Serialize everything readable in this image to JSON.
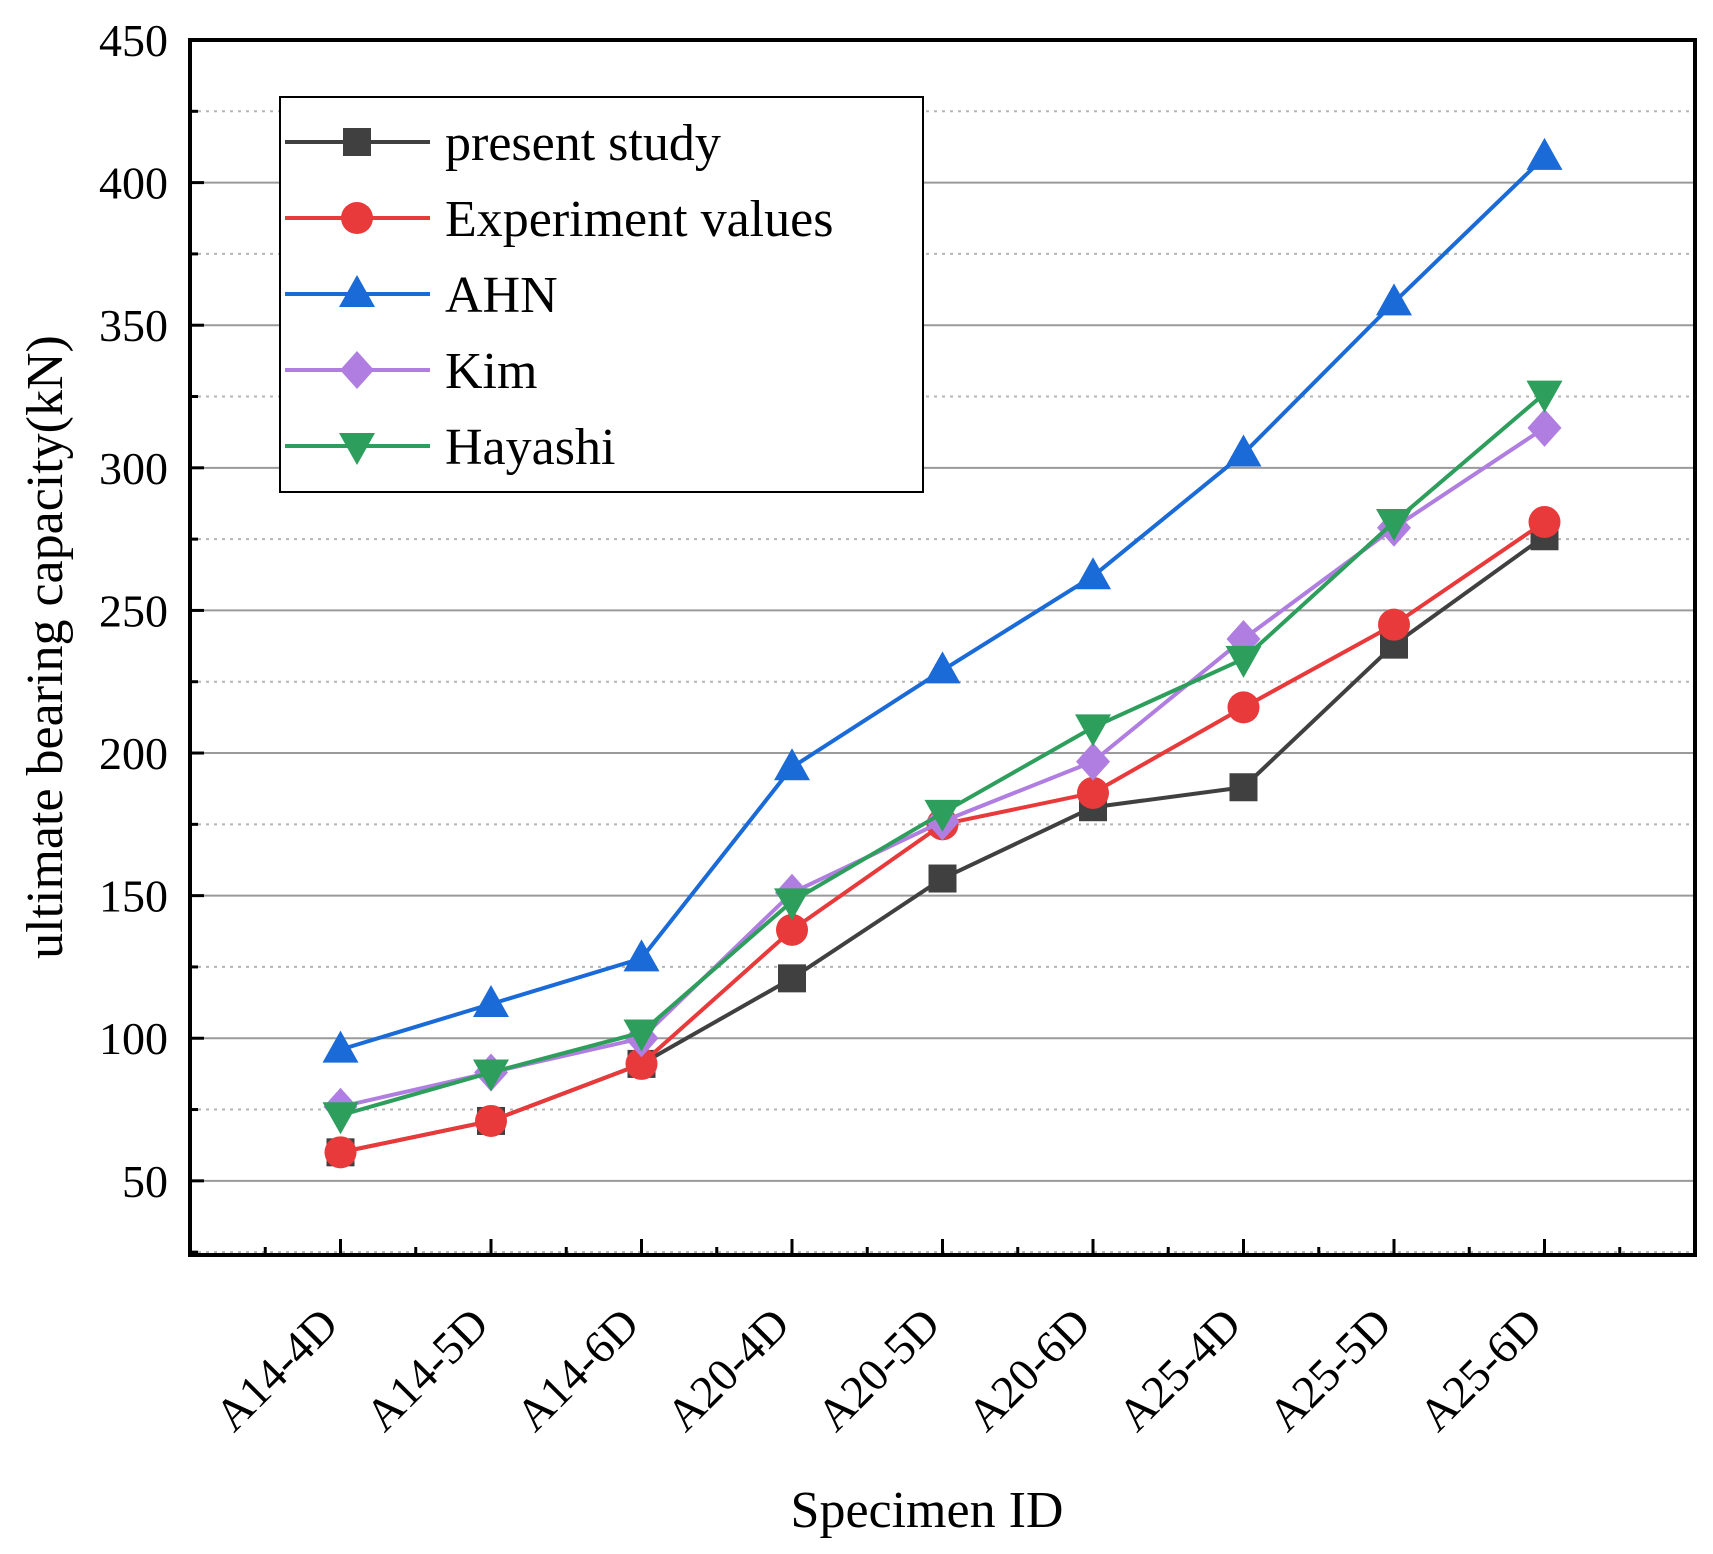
{
  "chart_data": {
    "type": "line",
    "title": "",
    "xlabel": "Specimen ID",
    "ylabel": "ultimate bearing capacity(kN)",
    "ylim": [
      24,
      450
    ],
    "yticks": [
      50,
      100,
      150,
      200,
      250,
      300,
      350,
      400,
      450
    ],
    "ytick_labels": [
      "50",
      "100",
      "150",
      "200",
      "250",
      "300",
      "350",
      "400",
      "450"
    ],
    "grid": true,
    "legend_position": "top-left",
    "categories": [
      "A14-4D",
      "A14-5D",
      "A14-6D",
      "A20-4D",
      "A20-5D",
      "A20-6D",
      "A25-4D",
      "A25-5D",
      "A25-6D"
    ],
    "series": [
      {
        "name": "present study",
        "color": "#404040",
        "marker": "square",
        "values": [
          60,
          71,
          91,
          121,
          156,
          181,
          188,
          238,
          276
        ]
      },
      {
        "name": "Experiment values",
        "color": "#e83a3a",
        "marker": "circle",
        "values": [
          60,
          71,
          91,
          138,
          175,
          186,
          216,
          245,
          281
        ]
      },
      {
        "name": "AHN",
        "color": "#1a6ad8",
        "marker": "triangle-up",
        "values": [
          96,
          112,
          128,
          195,
          229,
          262,
          305,
          358,
          409
        ]
      },
      {
        "name": "Kim",
        "color": "#b07ee0",
        "marker": "diamond",
        "values": [
          76,
          88,
          100,
          151,
          176,
          197,
          240,
          279,
          314
        ]
      },
      {
        "name": "Hayashi",
        "color": "#2e9e5c",
        "marker": "triangle-down",
        "values": [
          73,
          88,
          102,
          148,
          179,
          209,
          233,
          281,
          326
        ]
      }
    ]
  }
}
